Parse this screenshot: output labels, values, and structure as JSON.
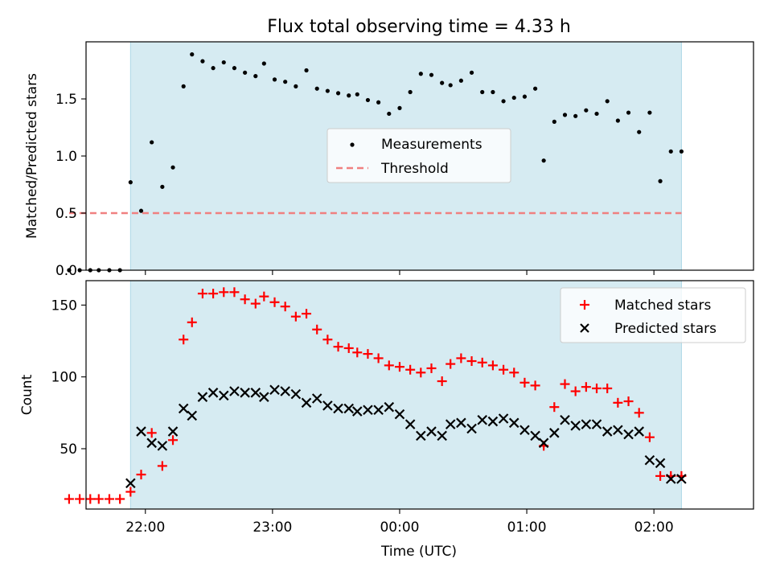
{
  "title": "Flux total observing time = 4.33 h",
  "xlabel": "Time (UTC)",
  "colors": {
    "shade": "#add8e6",
    "measurement": "#000000",
    "threshold": "#f08080",
    "matched": "#ff0000",
    "predicted": "#000000"
  },
  "chart_data": [
    {
      "type": "scatter",
      "ylabel": "Matched/Predicted stars",
      "xlim": [
        "21:32",
        "02:47"
      ],
      "ylim": [
        0,
        2.0
      ],
      "yticks": [
        0.0,
        0.5,
        1.0,
        1.5
      ],
      "ytick_labels": [
        "0.0",
        "0.5",
        "1.0",
        "1.5"
      ],
      "shaded_span": [
        "21:53",
        "02:13"
      ],
      "legend": {
        "position": "center",
        "entries": [
          "Measurements",
          "Threshold"
        ]
      },
      "threshold": {
        "name": "Threshold",
        "value": 0.5,
        "x_range": [
          "21:24",
          "02:13"
        ],
        "style": "dashed"
      },
      "series": [
        {
          "name": "Measurements",
          "marker": "dot",
          "x": [
            "21:24",
            "21:29",
            "21:34",
            "21:38",
            "21:43",
            "21:48",
            "21:53",
            "21:58",
            "22:03",
            "22:08",
            "22:13",
            "22:18",
            "22:22",
            "22:27",
            "22:32",
            "22:37",
            "22:42",
            "22:47",
            "22:52",
            "22:56",
            "23:01",
            "23:06",
            "23:11",
            "23:16",
            "23:21",
            "23:26",
            "23:31",
            "23:36",
            "23:40",
            "23:45",
            "23:50",
            "23:55",
            "00:00",
            "00:05",
            "00:10",
            "00:15",
            "00:20",
            "00:24",
            "00:29",
            "00:34",
            "00:39",
            "00:44",
            "00:49",
            "00:54",
            "00:59",
            "01:04",
            "01:08",
            "01:13",
            "01:18",
            "01:23",
            "01:28",
            "01:33",
            "01:38",
            "01:43",
            "01:48",
            "01:53",
            "01:58",
            "02:03",
            "02:08",
            "02:13"
          ],
          "y": [
            0.0,
            0.0,
            0.0,
            0.0,
            0.0,
            0.0,
            0.77,
            0.52,
            1.12,
            0.73,
            0.9,
            1.61,
            1.89,
            1.83,
            1.77,
            1.82,
            1.77,
            1.73,
            1.7,
            1.81,
            1.67,
            1.65,
            1.61,
            1.75,
            1.59,
            1.57,
            1.55,
            1.53,
            1.54,
            1.49,
            1.47,
            1.37,
            1.42,
            1.56,
            1.72,
            1.71,
            1.64,
            1.62,
            1.66,
            1.73,
            1.56,
            1.56,
            1.48,
            1.51,
            1.52,
            1.59,
            0.96,
            1.3,
            1.36,
            1.35,
            1.4,
            1.37,
            1.48,
            1.31,
            1.38,
            1.21,
            1.38,
            0.78,
            1.04,
            1.04
          ]
        }
      ]
    },
    {
      "type": "scatter",
      "ylabel": "Count",
      "xlim": [
        "21:32",
        "02:47"
      ],
      "ylim": [
        8,
        167
      ],
      "yticks": [
        50,
        100,
        150
      ],
      "ytick_labels": [
        "50",
        "100",
        "150"
      ],
      "xticks": [
        "22:00",
        "23:00",
        "00:00",
        "01:00",
        "02:00"
      ],
      "shaded_span": [
        "21:53",
        "02:13"
      ],
      "legend": {
        "position": "upper right",
        "entries": [
          "Matched stars",
          "Predicted stars"
        ]
      },
      "series": [
        {
          "name": "Matched stars",
          "marker": "plus",
          "x": [
            "21:24",
            "21:29",
            "21:34",
            "21:38",
            "21:43",
            "21:48",
            "21:53",
            "21:58",
            "22:03",
            "22:08",
            "22:13",
            "22:18",
            "22:22",
            "22:27",
            "22:32",
            "22:37",
            "22:42",
            "22:47",
            "22:52",
            "22:56",
            "23:01",
            "23:06",
            "23:11",
            "23:16",
            "23:21",
            "23:26",
            "23:31",
            "23:36",
            "23:40",
            "23:45",
            "23:50",
            "23:55",
            "00:00",
            "00:05",
            "00:10",
            "00:15",
            "00:20",
            "00:24",
            "00:29",
            "00:34",
            "00:39",
            "00:44",
            "00:49",
            "00:54",
            "00:59",
            "01:04",
            "01:08",
            "01:13",
            "01:18",
            "01:23",
            "01:28",
            "01:33",
            "01:38",
            "01:43",
            "01:48",
            "01:53",
            "01:58",
            "02:03",
            "02:08",
            "02:13"
          ],
          "y": [
            15,
            15,
            15,
            15,
            15,
            15,
            20,
            32,
            61,
            38,
            56,
            126,
            138,
            158,
            158,
            159,
            159,
            154,
            151,
            156,
            152,
            149,
            142,
            144,
            133,
            126,
            121,
            120,
            117,
            116,
            113,
            108,
            107,
            105,
            103,
            106,
            97,
            109,
            113,
            111,
            110,
            108,
            105,
            103,
            96,
            94,
            52,
            79,
            95,
            90,
            93,
            92,
            92,
            82,
            83,
            75,
            58,
            31,
            31,
            31
          ]
        },
        {
          "name": "Predicted stars",
          "marker": "x",
          "x": [
            "21:53",
            "21:58",
            "22:03",
            "22:08",
            "22:13",
            "22:18",
            "22:22",
            "22:27",
            "22:32",
            "22:37",
            "22:42",
            "22:47",
            "22:52",
            "22:56",
            "23:01",
            "23:06",
            "23:11",
            "23:16",
            "23:21",
            "23:26",
            "23:31",
            "23:36",
            "23:40",
            "23:45",
            "23:50",
            "23:55",
            "00:00",
            "00:05",
            "00:10",
            "00:15",
            "00:20",
            "00:24",
            "00:29",
            "00:34",
            "00:39",
            "00:44",
            "00:49",
            "00:54",
            "00:59",
            "01:04",
            "01:08",
            "01:13",
            "01:18",
            "01:23",
            "01:28",
            "01:33",
            "01:38",
            "01:43",
            "01:48",
            "01:53",
            "01:58",
            "02:03",
            "02:08",
            "02:13"
          ],
          "y": [
            26,
            62,
            54,
            52,
            62,
            78,
            73,
            86,
            89,
            87,
            90,
            89,
            89,
            86,
            91,
            90,
            88,
            82,
            85,
            80,
            78,
            78,
            76,
            77,
            77,
            79,
            74,
            67,
            59,
            62,
            59,
            67,
            68,
            64,
            70,
            69,
            71,
            68,
            63,
            59,
            54,
            61,
            70,
            66,
            67,
            67,
            62,
            63,
            60,
            62,
            42,
            40,
            29,
            29
          ]
        }
      ]
    }
  ]
}
